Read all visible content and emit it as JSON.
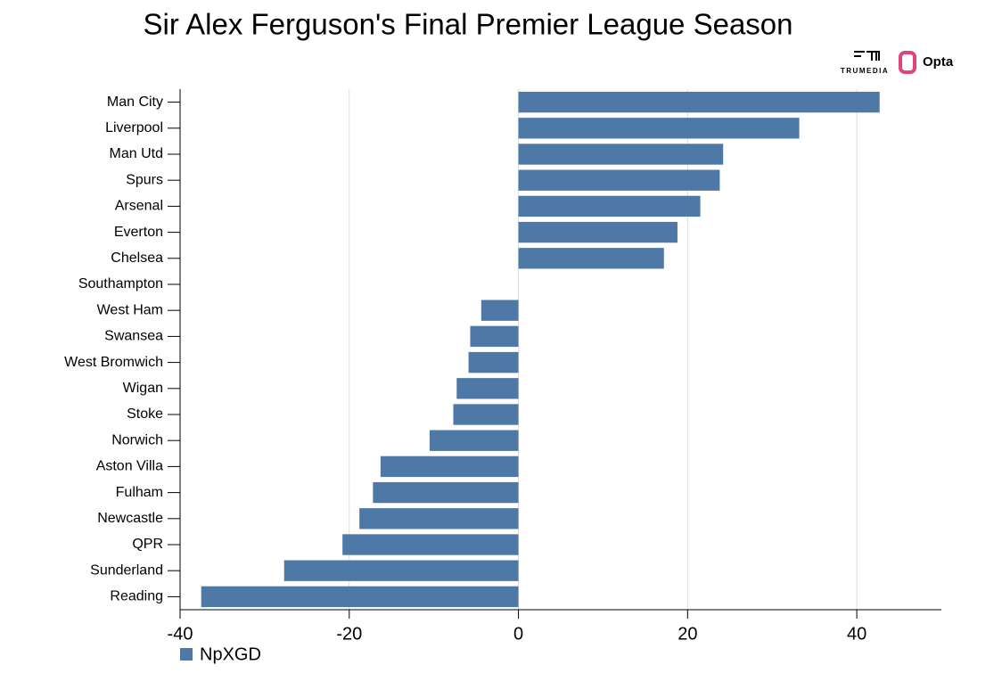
{
  "chart_data": {
    "type": "hbar",
    "title": "Sir Alex Ferguson's Final Premier League Season",
    "logos": [
      "TRUMEDIA",
      "Opta"
    ],
    "categories": [
      "Man City",
      "Liverpool",
      "Man Utd",
      "Spurs",
      "Arsenal",
      "Everton",
      "Chelsea",
      "Southampton",
      "West Ham",
      "Swansea",
      "West Bromwich",
      "Wigan",
      "Stoke",
      "Norwich",
      "Aston Villa",
      "Fulham",
      "Newcastle",
      "QPR",
      "Sunderland",
      "Reading"
    ],
    "series": [
      {
        "name": "NpXGD",
        "color": "#4e79a7",
        "values": [
          42.7,
          33.2,
          24.2,
          23.8,
          21.5,
          18.8,
          17.2,
          0,
          -4.4,
          -5.7,
          -5.9,
          -7.3,
          -7.7,
          -10.5,
          -16.3,
          -17.2,
          -18.8,
          -20.8,
          -27.7,
          -37.5
        ]
      }
    ],
    "xlim": [
      -40,
      50
    ],
    "xticks": [
      -40,
      -20,
      0,
      20,
      40
    ],
    "grid": true
  }
}
